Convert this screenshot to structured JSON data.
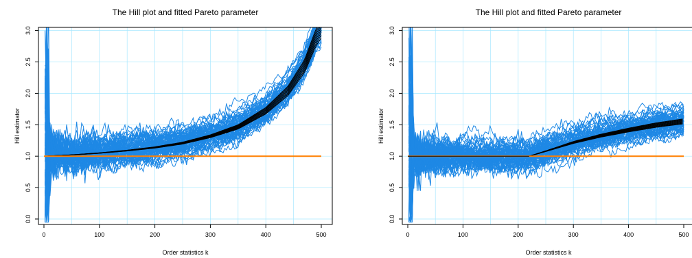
{
  "chart_data": [
    {
      "type": "line",
      "title": "The Hill plot and fitted Pareto parameter",
      "xlabel": "Order statistics k",
      "ylabel": "Hill estimator",
      "xlim": [
        0,
        500
      ],
      "ylim": [
        0,
        3.05
      ],
      "xticks": [
        "0",
        "100",
        "200",
        "300",
        "400",
        "500"
      ],
      "yticks": [
        "0.0",
        "0.5",
        "1.0",
        "1.5",
        "2.0",
        "2.5",
        "3.0"
      ],
      "grid": true,
      "colors": {
        "samples": "#1e88e5",
        "fitted": "#000000",
        "reference": "#ff7f00",
        "grid": "#a8e8ff"
      },
      "series": [
        {
          "role": "reference",
          "x": [
            0,
            500
          ],
          "y": [
            1.0,
            1.0
          ]
        },
        {
          "role": "fitted",
          "x": [
            0,
            50,
            100,
            150,
            200,
            250,
            300,
            350,
            400,
            440,
            470,
            490,
            500
          ],
          "y": [
            1.0,
            1.02,
            1.05,
            1.09,
            1.14,
            1.21,
            1.32,
            1.47,
            1.73,
            2.05,
            2.45,
            2.9,
            3.05
          ]
        }
      ]
    },
    {
      "type": "line",
      "title": "The Hill plot and fitted Pareto parameter",
      "xlabel": "Order statistics k",
      "ylabel": "Hill estimator",
      "xlim": [
        0,
        500
      ],
      "ylim": [
        0,
        3.05
      ],
      "xticks": [
        "0",
        "100",
        "200",
        "300",
        "400",
        "500"
      ],
      "yticks": [
        "0.0",
        "0.5",
        "1.0",
        "1.5",
        "2.0",
        "2.5",
        "3.0"
      ],
      "grid": true,
      "colors": {
        "samples": "#1e88e5",
        "fitted": "#000000",
        "reference": "#ff7f00",
        "grid": "#a8e8ff"
      },
      "series": [
        {
          "role": "reference",
          "x": [
            0,
            500
          ],
          "y": [
            1.0,
            1.0
          ]
        },
        {
          "role": "fitted",
          "x": [
            0,
            200,
            220,
            250,
            300,
            350,
            400,
            450,
            500
          ],
          "y": [
            1.0,
            1.0,
            1.0,
            1.08,
            1.22,
            1.33,
            1.42,
            1.5,
            1.56
          ]
        }
      ]
    }
  ]
}
